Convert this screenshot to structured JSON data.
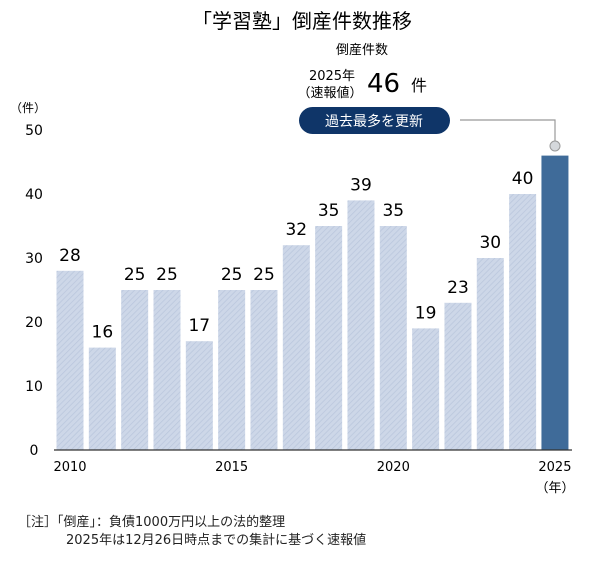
{
  "chart_data": {
    "type": "bar",
    "title": "「学習塾」倒産件数推移",
    "ylabel": "（件）",
    "xlabel": "（年）",
    "ylim": [
      0,
      50
    ],
    "yticks": [
      0,
      10,
      20,
      30,
      40,
      50
    ],
    "xticks": [
      "2010",
      "2015",
      "2020",
      "2025"
    ],
    "categories": [
      "2010",
      "2011",
      "2012",
      "2013",
      "2014",
      "2015",
      "2016",
      "2017",
      "2018",
      "2019",
      "2020",
      "2021",
      "2022",
      "2023",
      "2024",
      "2025"
    ],
    "values": [
      28,
      16,
      25,
      25,
      17,
      25,
      25,
      32,
      35,
      39,
      35,
      19,
      23,
      30,
      40,
      46
    ],
    "grid": false,
    "bar_color": "#c8d3e5",
    "highlight_color": "#3f6b99",
    "annotation": {
      "heading": "倒産件数",
      "year": "2025年",
      "sub": "（速報値）",
      "value": "46",
      "unit": "件",
      "badge": "過去最多を更新",
      "badge_color": "#0f3568"
    }
  },
  "notes": {
    "line1": "［注］「倒産」：負債1000万円以上の法的整理",
    "line2": "2025年は12月26日時点までの集計に基づく速報値"
  }
}
